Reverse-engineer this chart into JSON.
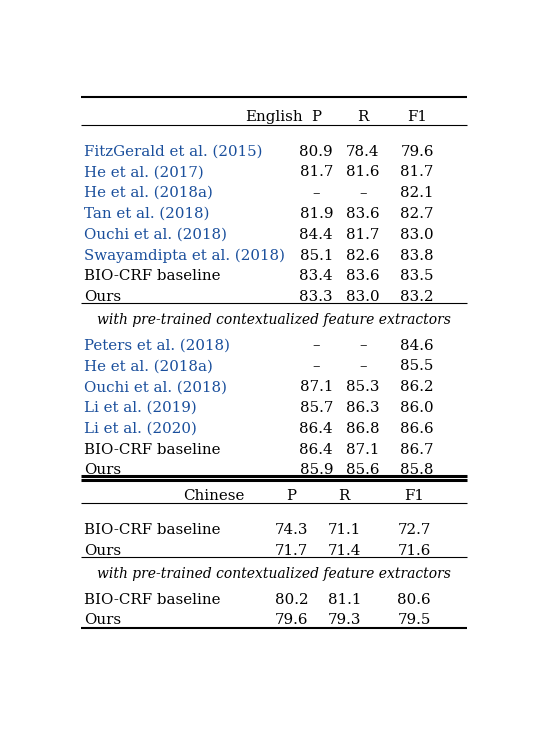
{
  "english_rows": [
    {
      "name": "FitzGerald et al. (2015)",
      "P": "80.9",
      "R": "78.4",
      "F1": "79.6",
      "blue": true
    },
    {
      "name": "He et al. (2017)",
      "P": "81.7",
      "R": "81.6",
      "F1": "81.7",
      "blue": true
    },
    {
      "name": "He et al. (2018a)",
      "P": "–",
      "R": "–",
      "F1": "82.1",
      "blue": true
    },
    {
      "name": "Tan et al. (2018)",
      "P": "81.9",
      "R": "83.6",
      "F1": "82.7",
      "blue": true
    },
    {
      "name": "Ouchi et al. (2018)",
      "P": "84.4",
      "R": "81.7",
      "F1": "83.0",
      "blue": true
    },
    {
      "name": "Swayamdipta et al. (2018)",
      "P": "85.1",
      "R": "82.6",
      "F1": "83.8",
      "blue": true
    },
    {
      "name": "BIO-CRF baseline",
      "P": "83.4",
      "R": "83.6",
      "F1": "83.5",
      "blue": false
    },
    {
      "name": "Ours",
      "P": "83.3",
      "R": "83.0",
      "F1": "83.2",
      "blue": false
    }
  ],
  "pretrained_label": "with pre-trained contextualized feature extractors",
  "english_pretrained_rows": [
    {
      "name": "Peters et al. (2018)",
      "P": "–",
      "R": "–",
      "F1": "84.6",
      "blue": true
    },
    {
      "name": "He et al. (2018a)",
      "P": "–",
      "R": "–",
      "F1": "85.5",
      "blue": true
    },
    {
      "name": "Ouchi et al. (2018)",
      "P": "87.1",
      "R": "85.3",
      "F1": "86.2",
      "blue": true
    },
    {
      "name": "Li et al. (2019)",
      "P": "85.7",
      "R": "86.3",
      "F1": "86.0",
      "blue": true
    },
    {
      "name": "Li et al. (2020)",
      "P": "86.4",
      "R": "86.8",
      "F1": "86.6",
      "blue": true
    },
    {
      "name": "BIO-CRF baseline",
      "P": "86.4",
      "R": "87.1",
      "F1": "86.7",
      "blue": false
    },
    {
      "name": "Ours",
      "P": "85.9",
      "R": "85.6",
      "F1": "85.8",
      "blue": false
    }
  ],
  "chinese_rows": [
    {
      "name": "BIO-CRF baseline",
      "P": "74.3",
      "R": "71.1",
      "F1": "72.7",
      "blue": false
    },
    {
      "name": "Ours",
      "P": "71.7",
      "R": "71.4",
      "F1": "71.6",
      "blue": false
    }
  ],
  "chinese_pretrained_rows": [
    {
      "name": "BIO-CRF baseline",
      "P": "80.2",
      "R": "81.1",
      "F1": "80.6",
      "blue": false
    },
    {
      "name": "Ours",
      "P": "79.6",
      "R": "79.3",
      "F1": "79.5",
      "blue": false
    }
  ],
  "blue_color": "#1a4f9c",
  "black_color": "#000000",
  "bg_color": "#FFFFFF"
}
